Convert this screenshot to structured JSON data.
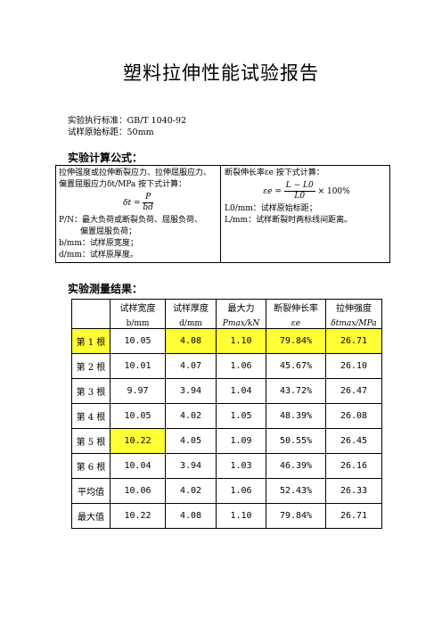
{
  "title": "塑料拉伸性能试验报告",
  "meta": {
    "standard": "实验执行标准：GB/T 1040-92",
    "gauge_length": "试样原始标距：50mm"
  },
  "formula_section": {
    "heading": "实验计算公式：",
    "left": {
      "intro": "拉伸强度或拉伸断裂应力、拉伸屈服应力、偏置屈服应力δt/MPa 按下式计算：",
      "formula_lhs": "δt =",
      "formula_num": "P",
      "formula_den": "bd",
      "def_p_1": "P/N：最大负荷或断裂负荷、屈服负荷、",
      "def_p_2": "偏置屈服负荷；",
      "def_b": "b/mm：试样原宽度；",
      "def_d": "d/mm：试样原厚度。"
    },
    "right": {
      "intro": "断裂伸长率εe 按下式计算：",
      "formula_lhs": "εe =",
      "formula_num": "L − L0",
      "formula_den": "L0",
      "formula_tail": "× 100%",
      "def_l0": "L0/mm：试样原始标距；",
      "def_l": "L/mm：试样断裂时两标线间距离。"
    }
  },
  "results_section": {
    "heading": "实验测量结果：",
    "headers": [
      {
        "top": "试样宽度",
        "bottom": "b/mm"
      },
      {
        "top": "试样厚度",
        "bottom": "d/mm"
      },
      {
        "top": "最大力",
        "bottom": "Pmax/kN"
      },
      {
        "top": "断裂伸长率",
        "bottom": "εe"
      },
      {
        "top": "拉伸强度",
        "bottom": "δtmax/MPa"
      }
    ],
    "rows": [
      {
        "label": "第 1 根",
        "values": [
          "10.05",
          "4.08",
          "1.10",
          "79.84%",
          "26.71"
        ]
      },
      {
        "label": "第 2 根",
        "values": [
          "10.01",
          "4.07",
          "1.06",
          "45.67%",
          "26.10"
        ]
      },
      {
        "label": "第 3 根",
        "values": [
          "9.97",
          "3.94",
          "1.04",
          "43.72%",
          "26.47"
        ]
      },
      {
        "label": "第 4 根",
        "values": [
          "10.05",
          "4.02",
          "1.05",
          "48.39%",
          "26.08"
        ]
      },
      {
        "label": "第 5 根",
        "values": [
          "10.22",
          "4.05",
          "1.09",
          "50.55%",
          "26.45"
        ]
      },
      {
        "label": "第 6 根",
        "values": [
          "10.04",
          "3.94",
          "1.03",
          "46.39%",
          "26.16"
        ]
      },
      {
        "label": "平均值",
        "values": [
          "10.06",
          "4.02",
          "1.06",
          "52.43%",
          "26.33"
        ]
      },
      {
        "label": "最大值",
        "values": [
          "10.22",
          "4.08",
          "1.10",
          "79.84%",
          "26.71"
        ]
      }
    ],
    "highlight_color": "#ffff33"
  }
}
